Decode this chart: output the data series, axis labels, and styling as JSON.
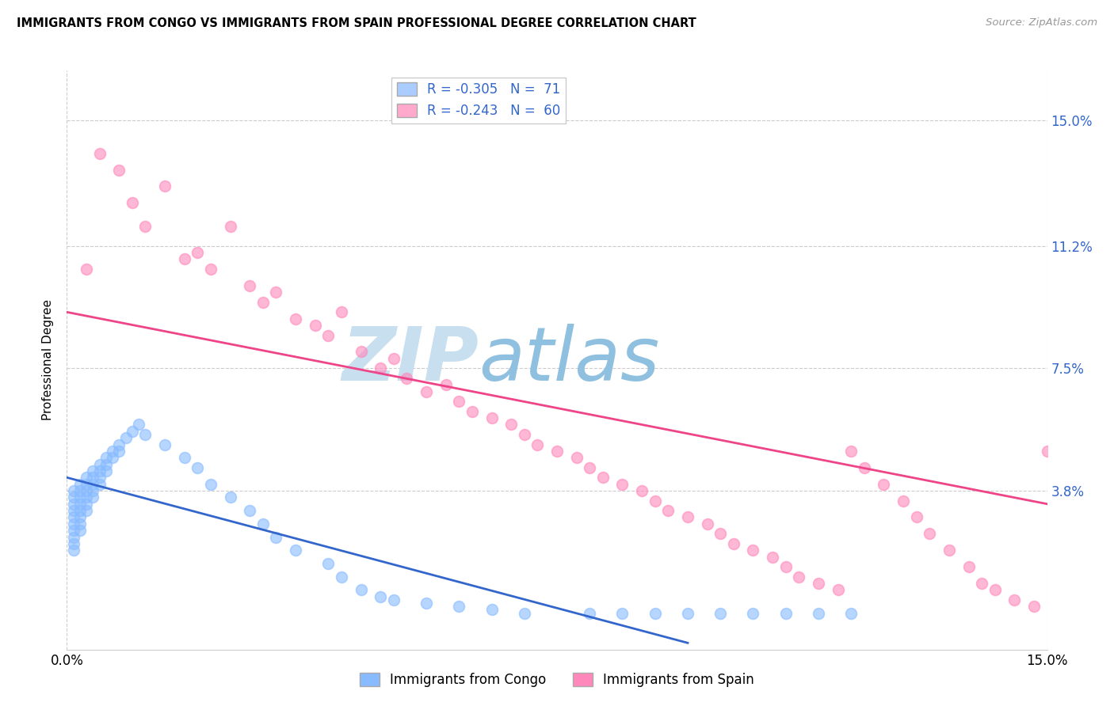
{
  "title": "IMMIGRANTS FROM CONGO VS IMMIGRANTS FROM SPAIN PROFESSIONAL DEGREE CORRELATION CHART",
  "source": "Source: ZipAtlas.com",
  "ylabel": "Professional Degree",
  "ytick_labels": [
    "15.0%",
    "11.2%",
    "7.5%",
    "3.8%"
  ],
  "ytick_values": [
    0.15,
    0.112,
    0.075,
    0.038
  ],
  "xlim": [
    0.0,
    0.15
  ],
  "ylim": [
    -0.01,
    0.165
  ],
  "legend_label1": "R = -0.305   N =  71",
  "legend_label2": "R = -0.243   N =  60",
  "legend_color1": "#aaccff",
  "legend_color2": "#ffaacc",
  "scatter_color1": "#88bbff",
  "scatter_color2": "#ff88bb",
  "line_color1": "#3366cc",
  "line_color2": "#ee4488",
  "watermark_zip": "ZIP",
  "watermark_atlas": "atlas",
  "watermark_color_zip": "#c8dff0",
  "watermark_color_atlas": "#90c0e0",
  "bottom_legend1": "Immigrants from Congo",
  "bottom_legend2": "Immigrants from Spain",
  "legend_text_color": "#3366cc",
  "congo_x": [
    0.001,
    0.001,
    0.001,
    0.001,
    0.001,
    0.001,
    0.001,
    0.001,
    0.001,
    0.001,
    0.002,
    0.002,
    0.002,
    0.002,
    0.002,
    0.002,
    0.002,
    0.002,
    0.003,
    0.003,
    0.003,
    0.003,
    0.003,
    0.003,
    0.004,
    0.004,
    0.004,
    0.004,
    0.004,
    0.005,
    0.005,
    0.005,
    0.005,
    0.006,
    0.006,
    0.006,
    0.007,
    0.007,
    0.008,
    0.008,
    0.009,
    0.01,
    0.011,
    0.012,
    0.015,
    0.018,
    0.02,
    0.022,
    0.025,
    0.028,
    0.03,
    0.032,
    0.035,
    0.04,
    0.042,
    0.045,
    0.048,
    0.05,
    0.055,
    0.06,
    0.065,
    0.07,
    0.08,
    0.085,
    0.09,
    0.095,
    0.1,
    0.105,
    0.11,
    0.115,
    0.12
  ],
  "congo_y": [
    0.038,
    0.036,
    0.034,
    0.032,
    0.03,
    0.028,
    0.026,
    0.024,
    0.022,
    0.02,
    0.04,
    0.038,
    0.036,
    0.034,
    0.032,
    0.03,
    0.028,
    0.026,
    0.042,
    0.04,
    0.038,
    0.036,
    0.034,
    0.032,
    0.044,
    0.042,
    0.04,
    0.038,
    0.036,
    0.046,
    0.044,
    0.042,
    0.04,
    0.048,
    0.046,
    0.044,
    0.05,
    0.048,
    0.052,
    0.05,
    0.054,
    0.056,
    0.058,
    0.055,
    0.052,
    0.048,
    0.045,
    0.04,
    0.036,
    0.032,
    0.028,
    0.024,
    0.02,
    0.016,
    0.012,
    0.008,
    0.006,
    0.005,
    0.004,
    0.003,
    0.002,
    0.001,
    0.001,
    0.001,
    0.001,
    0.001,
    0.001,
    0.001,
    0.001,
    0.001,
    0.001
  ],
  "spain_x": [
    0.005,
    0.008,
    0.01,
    0.012,
    0.015,
    0.018,
    0.02,
    0.022,
    0.025,
    0.028,
    0.03,
    0.032,
    0.035,
    0.038,
    0.04,
    0.042,
    0.045,
    0.048,
    0.05,
    0.052,
    0.055,
    0.058,
    0.06,
    0.062,
    0.065,
    0.068,
    0.07,
    0.072,
    0.075,
    0.078,
    0.08,
    0.082,
    0.085,
    0.088,
    0.09,
    0.092,
    0.095,
    0.098,
    0.1,
    0.102,
    0.105,
    0.108,
    0.11,
    0.112,
    0.115,
    0.118,
    0.12,
    0.122,
    0.125,
    0.128,
    0.13,
    0.132,
    0.135,
    0.138,
    0.14,
    0.142,
    0.145,
    0.148,
    0.15,
    0.003
  ],
  "spain_y": [
    0.14,
    0.135,
    0.125,
    0.118,
    0.13,
    0.108,
    0.11,
    0.105,
    0.118,
    0.1,
    0.095,
    0.098,
    0.09,
    0.088,
    0.085,
    0.092,
    0.08,
    0.075,
    0.078,
    0.072,
    0.068,
    0.07,
    0.065,
    0.062,
    0.06,
    0.058,
    0.055,
    0.052,
    0.05,
    0.048,
    0.045,
    0.042,
    0.04,
    0.038,
    0.035,
    0.032,
    0.03,
    0.028,
    0.025,
    0.022,
    0.02,
    0.018,
    0.015,
    0.012,
    0.01,
    0.008,
    0.05,
    0.045,
    0.04,
    0.035,
    0.03,
    0.025,
    0.02,
    0.015,
    0.01,
    0.008,
    0.005,
    0.003,
    0.05,
    0.105
  ],
  "congo_line_x": [
    0.0,
    0.095
  ],
  "congo_line_y": [
    0.042,
    -0.008
  ],
  "spain_line_x": [
    0.0,
    0.15
  ],
  "spain_line_y": [
    0.092,
    0.034
  ]
}
